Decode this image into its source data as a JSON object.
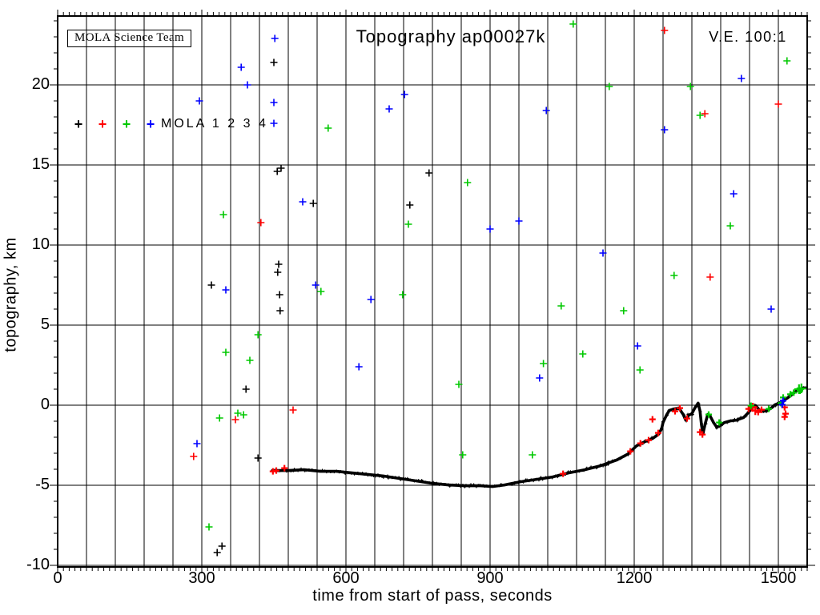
{
  "header": {
    "team_box": "MOLA Science Team",
    "title": "Topography ap00027k",
    "ve_label": "V.E. 100:1"
  },
  "legend": {
    "label": "MOLA 1 2 3 4",
    "markers": [
      {
        "name": "mola-1",
        "glyph": "+",
        "color": "#000000"
      },
      {
        "name": "mola-2",
        "glyph": "+",
        "color": "#ff0000"
      },
      {
        "name": "mola-3",
        "glyph": "+",
        "color": "#00c800"
      },
      {
        "name": "mola-4",
        "glyph": "+",
        "color": "#0000ff"
      }
    ]
  },
  "axes": {
    "xlabel": "time from start of pass, seconds",
    "ylabel": "topography, km"
  },
  "chart_data": {
    "type": "scatter",
    "title": "Topography ap00027k",
    "xlabel": "time from start of pass, seconds",
    "ylabel": "topography, km",
    "xlim": [
      0,
      1560
    ],
    "ylim": [
      -10.1,
      24.3
    ],
    "x_major_ticks": [
      0,
      300,
      600,
      900,
      1200,
      1500
    ],
    "x_grid_step_seconds": 60,
    "x_minor_tick_step_seconds": 12,
    "y_major_ticks": [
      -10,
      -5,
      0,
      5,
      10,
      15,
      20
    ],
    "y_minor_tick_step_km": 1,
    "grid": true,
    "legend_position": "upper-left-inside",
    "vertical_exaggeration": "100:1",
    "track": {
      "name": "main-ground-track",
      "color": "#000000",
      "points": [
        [
          447,
          -4.08
        ],
        [
          480,
          -4.08
        ],
        [
          513,
          -4.03
        ],
        [
          547,
          -4.13
        ],
        [
          580,
          -4.13
        ],
        [
          613,
          -4.23
        ],
        [
          647,
          -4.33
        ],
        [
          680,
          -4.43
        ],
        [
          713,
          -4.58
        ],
        [
          747,
          -4.73
        ],
        [
          780,
          -4.88
        ],
        [
          813,
          -4.98
        ],
        [
          847,
          -5.03
        ],
        [
          880,
          -5.03
        ],
        [
          905,
          -5.08
        ],
        [
          930,
          -4.98
        ],
        [
          963,
          -4.78
        ],
        [
          997,
          -4.63
        ],
        [
          1030,
          -4.48
        ],
        [
          1063,
          -4.23
        ],
        [
          1097,
          -4.03
        ],
        [
          1130,
          -3.78
        ],
        [
          1163,
          -3.43
        ],
        [
          1188,
          -3.03
        ],
        [
          1205,
          -2.53
        ],
        [
          1222,
          -2.28
        ],
        [
          1238,
          -2.08
        ],
        [
          1250,
          -1.83
        ],
        [
          1257,
          -1.48
        ],
        [
          1260,
          -1.08
        ],
        [
          1267,
          -0.63
        ],
        [
          1273,
          -0.33
        ],
        [
          1283,
          -0.23
        ],
        [
          1293,
          -0.18
        ],
        [
          1302,
          -0.58
        ],
        [
          1307,
          -0.93
        ],
        [
          1313,
          -0.63
        ],
        [
          1320,
          -0.53
        ],
        [
          1327,
          -0.13
        ],
        [
          1333,
          0.13
        ],
        [
          1337,
          -0.38
        ],
        [
          1340,
          -1.23
        ],
        [
          1343,
          -1.78
        ],
        [
          1348,
          -1.13
        ],
        [
          1353,
          -0.58
        ],
        [
          1358,
          -0.68
        ],
        [
          1365,
          -1.08
        ],
        [
          1372,
          -1.38
        ],
        [
          1380,
          -1.23
        ],
        [
          1388,
          -1.08
        ],
        [
          1400,
          -0.98
        ],
        [
          1413,
          -0.93
        ],
        [
          1427,
          -0.78
        ],
        [
          1437,
          -0.48
        ],
        [
          1447,
          -0.13
        ],
        [
          1453,
          -0.03
        ],
        [
          1460,
          -0.28
        ],
        [
          1468,
          -0.38
        ],
        [
          1477,
          -0.33
        ],
        [
          1485,
          -0.18
        ],
        [
          1493,
          0.03
        ],
        [
          1502,
          0.13
        ],
        [
          1510,
          0.28
        ],
        [
          1518,
          0.43
        ],
        [
          1527,
          0.63
        ],
        [
          1535,
          0.83
        ],
        [
          1543,
          0.98
        ],
        [
          1552,
          1.08
        ],
        [
          1558,
          1.08
        ]
      ]
    },
    "track_markers": [
      {
        "series": "MOLA 2",
        "color": "#ff0000",
        "points": [
          [
            448,
            -4.13
          ],
          [
            455,
            -4.08
          ],
          [
            472,
            -3.93
          ],
          [
            1052,
            -4.28
          ],
          [
            1192,
            -2.88
          ],
          [
            1213,
            -2.38
          ],
          [
            1230,
            -2.18
          ],
          [
            1238,
            -0.88
          ],
          [
            1250,
            -1.73
          ],
          [
            1285,
            -0.38
          ],
          [
            1295,
            -0.18
          ],
          [
            1310,
            -0.83
          ],
          [
            1337,
            -1.68
          ],
          [
            1342,
            -1.83
          ],
          [
            1438,
            -0.23
          ],
          [
            1447,
            -0.13,
            1.4
          ],
          [
            1452,
            -0.33,
            1.4
          ],
          [
            1458,
            -0.43
          ],
          [
            1465,
            -0.28
          ],
          [
            1513,
            -0.13
          ],
          [
            1515,
            -0.53
          ],
          [
            1513,
            -0.73
          ]
        ]
      },
      {
        "series": "MOLA 3",
        "color": "#00c800",
        "points": [
          [
            1355,
            -0.58
          ],
          [
            1377,
            -1.08
          ],
          [
            1443,
            -0.03
          ],
          [
            1480,
            -0.23
          ],
          [
            1505,
            0.13
          ],
          [
            1510,
            0.48
          ],
          [
            1525,
            0.68
          ],
          [
            1532,
            0.78
          ],
          [
            1543,
            1.0,
            1.5
          ],
          [
            1548,
            1.05,
            1.5
          ],
          [
            1545,
            0.9
          ]
        ]
      },
      {
        "series": "MOLA 4",
        "color": "#0000ff",
        "points": [
          [
            1510,
            0.28
          ],
          [
            1508,
            0.03
          ]
        ]
      }
    ],
    "noise_points": [
      {
        "series": "MOLA 1",
        "color": "#000000",
        "points": [
          [
            450,
            21.4
          ],
          [
            457,
            14.6
          ],
          [
            465,
            14.8
          ],
          [
            773,
            14.5
          ],
          [
            532,
            12.6
          ],
          [
            733,
            12.5
          ],
          [
            460,
            8.8
          ],
          [
            458,
            8.3
          ],
          [
            320,
            7.5
          ],
          [
            462,
            6.9
          ],
          [
            463,
            5.9
          ],
          [
            392,
            1.0
          ],
          [
            417,
            -3.3
          ],
          [
            342,
            -8.8
          ],
          [
            332,
            -9.2
          ]
        ]
      },
      {
        "series": "MOLA 2",
        "color": "#ff0000",
        "points": [
          [
            1263,
            23.4
          ],
          [
            1500,
            18.8
          ],
          [
            1347,
            18.2
          ],
          [
            423,
            11.4
          ],
          [
            1358,
            8.0
          ],
          [
            490,
            -0.3
          ],
          [
            370,
            -0.9
          ],
          [
            283,
            -3.2
          ]
        ]
      },
      {
        "series": "MOLA 3",
        "color": "#00c800",
        "points": [
          [
            1073,
            23.8
          ],
          [
            1518,
            21.5
          ],
          [
            563,
            17.3
          ],
          [
            853,
            13.9
          ],
          [
            345,
            11.9
          ],
          [
            1148,
            19.9
          ],
          [
            1317,
            19.9
          ],
          [
            1337,
            18.1
          ],
          [
            730,
            11.3
          ],
          [
            1283,
            8.1
          ],
          [
            1048,
            6.2
          ],
          [
            1178,
            5.9
          ],
          [
            1400,
            11.2
          ],
          [
            548,
            7.1
          ],
          [
            718,
            6.9
          ],
          [
            417,
            4.4
          ],
          [
            350,
            3.3
          ],
          [
            400,
            2.8
          ],
          [
            835,
            1.3
          ],
          [
            1011,
            2.6
          ],
          [
            1093,
            3.2
          ],
          [
            1212,
            2.2
          ],
          [
            375,
            -0.5
          ],
          [
            387,
            -0.6
          ],
          [
            337,
            -0.8
          ],
          [
            315,
            -7.6
          ],
          [
            843,
            -3.1
          ],
          [
            988,
            -3.1
          ]
        ]
      },
      {
        "series": "MOLA 4",
        "color": "#0000ff",
        "points": [
          [
            452,
            22.9
          ],
          [
            382,
            21.1
          ],
          [
            395,
            20.0
          ],
          [
            295,
            19.0
          ],
          [
            450,
            18.9
          ],
          [
            722,
            19.4
          ],
          [
            690,
            18.5
          ],
          [
            450,
            17.6
          ],
          [
            1017,
            18.4
          ],
          [
            1423,
            20.4
          ],
          [
            510,
            12.7
          ],
          [
            537,
            7.5
          ],
          [
            652,
            6.6
          ],
          [
            350,
            7.2
          ],
          [
            627,
            2.4
          ],
          [
            1003,
            1.7
          ],
          [
            1135,
            9.5
          ],
          [
            1485,
            6.0
          ],
          [
            1207,
            3.7
          ],
          [
            1407,
            13.2
          ],
          [
            1263,
            17.2
          ],
          [
            900,
            11.0
          ],
          [
            960,
            11.5
          ],
          [
            290,
            -2.4
          ]
        ]
      }
    ]
  }
}
